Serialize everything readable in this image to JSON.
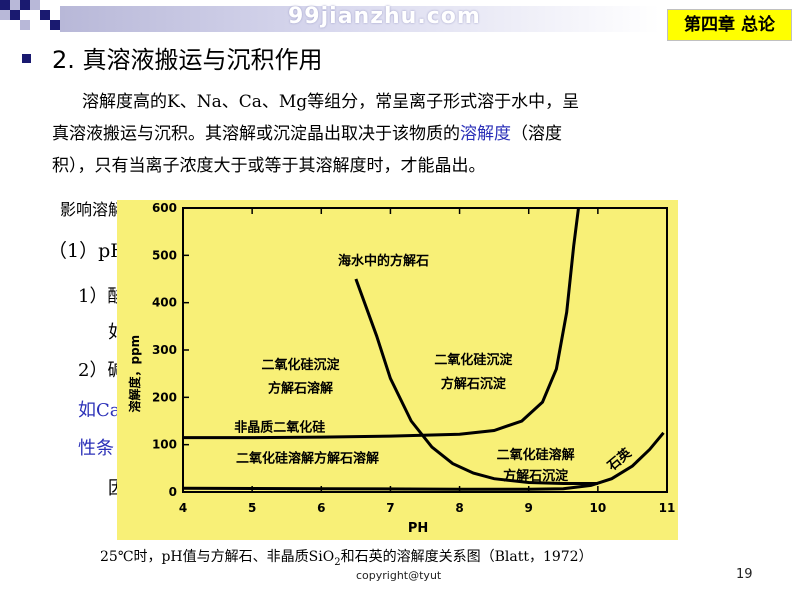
{
  "header": {
    "watermark": "99jianzhu.com",
    "chapter": "第四章 总论",
    "accent_color": "#1a1a70",
    "badge_color": "#ffff00"
  },
  "section": {
    "title": "2. 真溶液搬运与沉积作用",
    "para_line1": "溶解度高的K、Na、Ca、Mg等组分，常呈离子形式溶于水中，呈",
    "para_line2_a": "真溶液搬运与沉积。其溶解或沉淀晶出取决于该物质的",
    "para_line2_link": "溶解度",
    "para_line2_b": "（溶度",
    "para_line3": "积），只有当离子浓度大于或等于其溶解度时，才能晶出。",
    "factors_heading": "影响溶解度的因素"
  },
  "behind_fragments": {
    "ph_item": "（1）pH",
    "sub1": "1）酸",
    "sub1b": "如",
    "sub2": "2）碱",
    "ca_line": "如Ca",
    "cond": "性条",
    "last": "因"
  },
  "chart_data": {
    "type": "line",
    "xlabel": "PH",
    "ylabel": "溶解度，ppm",
    "xlim": [
      4,
      11
    ],
    "ylim": [
      0,
      600
    ],
    "x_ticks": [
      4,
      5,
      6,
      7,
      8,
      9,
      10,
      11
    ],
    "y_ticks": [
      0,
      100,
      200,
      300,
      400,
      500,
      600
    ],
    "series": [
      {
        "name": "海水中的方解石",
        "points": [
          [
            6.5,
            450
          ],
          [
            6.8,
            330
          ],
          [
            7.0,
            240
          ],
          [
            7.3,
            150
          ],
          [
            7.6,
            95
          ],
          [
            7.9,
            60
          ],
          [
            8.2,
            40
          ],
          [
            8.5,
            28
          ],
          [
            9.0,
            20
          ],
          [
            9.5,
            18
          ],
          [
            10.0,
            18
          ]
        ]
      },
      {
        "name": "非晶质二氧化硅",
        "points": [
          [
            4.0,
            115
          ],
          [
            5.0,
            115
          ],
          [
            6.0,
            116
          ],
          [
            7.0,
            118
          ],
          [
            8.0,
            122
          ],
          [
            8.5,
            130
          ],
          [
            8.9,
            150
          ],
          [
            9.2,
            190
          ],
          [
            9.4,
            260
          ],
          [
            9.55,
            380
          ],
          [
            9.65,
            520
          ],
          [
            9.72,
            600
          ]
        ]
      },
      {
        "name": "石英",
        "points": [
          [
            4.0,
            8
          ],
          [
            6.0,
            7
          ],
          [
            8.0,
            6
          ],
          [
            9.0,
            6
          ],
          [
            9.5,
            7
          ],
          [
            9.9,
            14
          ],
          [
            10.2,
            28
          ],
          [
            10.5,
            55
          ],
          [
            10.75,
            90
          ],
          [
            10.95,
            125
          ]
        ]
      }
    ],
    "annotations": [
      {
        "text": "海水中的方解石",
        "x": 6.9,
        "y": 480
      },
      {
        "text": "二氧化硅沉淀",
        "x": 5.7,
        "y": 260
      },
      {
        "text": "方解石溶解",
        "x": 5.7,
        "y": 210
      },
      {
        "text": "二氧化硅沉淀",
        "x": 8.2,
        "y": 270
      },
      {
        "text": "方解石沉淀",
        "x": 8.2,
        "y": 220
      },
      {
        "text": "非晶质二氧化硅",
        "x": 5.4,
        "y": 128
      },
      {
        "text": "二氧化硅溶解方解石溶解",
        "x": 5.8,
        "y": 62
      },
      {
        "text": "二氧化硅溶解",
        "x": 9.1,
        "y": 70
      },
      {
        "text": "方解石沉淀",
        "x": 9.1,
        "y": 25
      },
      {
        "text": "石英",
        "x": 10.35,
        "y": 62
      }
    ],
    "background_color": "#f8f077"
  },
  "caption": {
    "prefix": "25℃时，pH值与方解石、非晶质SiO",
    "sub": "2",
    "suffix": "和石英的溶解度关系图（Blatt，1972）"
  },
  "footer": {
    "copyright": "copyright@tyut",
    "page_number": "19"
  }
}
